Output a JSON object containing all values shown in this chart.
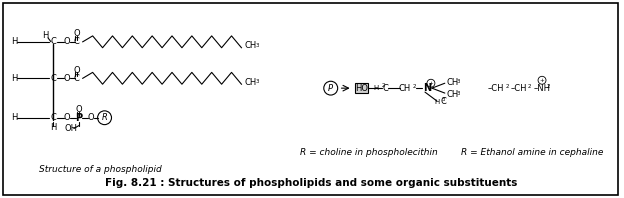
{
  "title": "Fig. 8.21 : Structures of phospholipids and some organic substituents",
  "caption1": "Structure of a phospholipid",
  "caption2": "R = choline in phospholecithin",
  "caption3": "R = Ethanol amine in cephaline",
  "bg_color": "#ffffff",
  "border_color": "#000000",
  "text_color": "#000000"
}
